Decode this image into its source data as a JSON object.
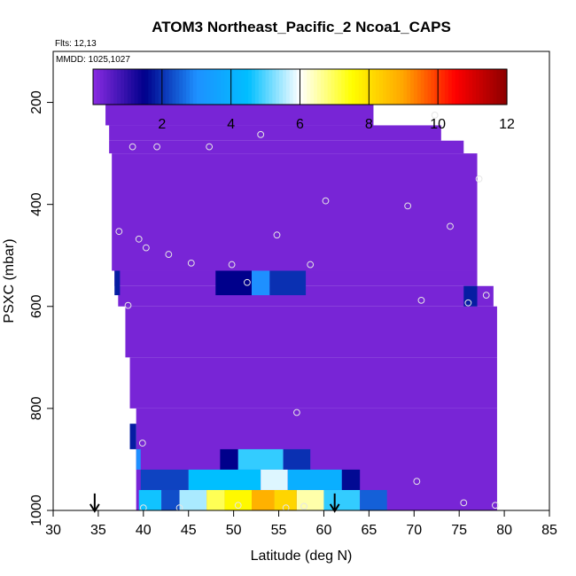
{
  "chart_data": {
    "type": "heatmap",
    "title": "ATOM3 Northeast_Pacific_2 Ncoa1_CAPS",
    "flights_label": "Flts: 12,13",
    "mmdd_label": "MMDD: 1025,1027",
    "xlabel": "Latitude (deg N)",
    "ylabel": "PSXC (mbar)",
    "xlim": [
      30,
      85
    ],
    "ylim": [
      1000,
      100
    ],
    "x_ticks": [
      30,
      35,
      40,
      45,
      50,
      55,
      60,
      65,
      70,
      75,
      80,
      85
    ],
    "y_ticks": [
      200,
      400,
      600,
      800,
      1000
    ],
    "colorbar": {
      "range": [
        0,
        12
      ],
      "ticks": [
        2,
        4,
        6,
        8,
        10,
        12
      ],
      "colors": [
        "#8a2be2",
        "#00008b",
        "#1e90ff",
        "#00bfff",
        "#ffffff",
        "#ffff00",
        "#ffa500",
        "#ff0000",
        "#8b0000"
      ]
    },
    "base_value": 0.2,
    "domain": [
      {
        "lat": [
          35.8,
          65.5
        ],
        "p": [
          165,
          245
        ]
      },
      {
        "lat": [
          36.2,
          73.0
        ],
        "p": [
          245,
          275
        ]
      },
      {
        "lat": [
          36.2,
          75.5
        ],
        "p": [
          275,
          300
        ]
      },
      {
        "lat": [
          36.5,
          77.0
        ],
        "p": [
          300,
          530
        ]
      },
      {
        "lat": [
          36.8,
          77.0
        ],
        "p": [
          530,
          560
        ]
      },
      {
        "lat": [
          37.2,
          78.8
        ],
        "p": [
          560,
          600
        ]
      },
      {
        "lat": [
          38.0,
          79.2
        ],
        "p": [
          600,
          700
        ]
      },
      {
        "lat": [
          38.5,
          79.2
        ],
        "p": [
          700,
          800
        ]
      },
      {
        "lat": [
          39.2,
          79.2
        ],
        "p": [
          800,
          1010
        ]
      }
    ],
    "features": [
      {
        "lat": [
          48,
          52
        ],
        "p": [
          530,
          578
        ],
        "v": 1.5
      },
      {
        "lat": [
          52,
          54
        ],
        "p": [
          530,
          578
        ],
        "v": 3.0
      },
      {
        "lat": [
          54,
          58
        ],
        "p": [
          530,
          578
        ],
        "v": 2.0
      },
      {
        "lat": [
          36.8,
          37.4
        ],
        "p": [
          530,
          578
        ],
        "v": 1.8
      },
      {
        "lat": [
          75.5,
          77
        ],
        "p": [
          560,
          600
        ],
        "v": 1.8
      },
      {
        "lat": [
          38.5,
          39.2
        ],
        "p": [
          830,
          880
        ],
        "v": 1.8
      },
      {
        "lat": [
          39.2,
          39.7
        ],
        "p": [
          880,
          920
        ],
        "v": 3.0
      },
      {
        "lat": [
          48.5,
          50.5
        ],
        "p": [
          880,
          920
        ],
        "v": 1.5
      },
      {
        "lat": [
          50.5,
          55.5
        ],
        "p": [
          880,
          920
        ],
        "v": 4.8
      },
      {
        "lat": [
          55.5,
          58.5
        ],
        "p": [
          880,
          920
        ],
        "v": 2.0
      },
      {
        "lat": [
          39.7,
          45
        ],
        "p": [
          920,
          960
        ],
        "v": 2.2
      },
      {
        "lat": [
          45,
          53
        ],
        "p": [
          920,
          960
        ],
        "v": 4.5
      },
      {
        "lat": [
          53,
          56
        ],
        "p": [
          920,
          960
        ],
        "v": 5.8
      },
      {
        "lat": [
          56,
          62
        ],
        "p": [
          920,
          960
        ],
        "v": 4.0
      },
      {
        "lat": [
          62,
          64
        ],
        "p": [
          920,
          960
        ],
        "v": 1.6
      },
      {
        "lat": [
          39.5,
          42
        ],
        "p": [
          960,
          1000
        ],
        "v": 4.6
      },
      {
        "lat": [
          42,
          44
        ],
        "p": [
          960,
          1000
        ],
        "v": 2.3
      },
      {
        "lat": [
          44,
          47
        ],
        "p": [
          960,
          1000
        ],
        "v": 5.5
      },
      {
        "lat": [
          47,
          49
        ],
        "p": [
          960,
          1000
        ],
        "v": 7.0
      },
      {
        "lat": [
          49,
          52
        ],
        "p": [
          960,
          1000
        ],
        "v": 7.6
      },
      {
        "lat": [
          52,
          54.5
        ],
        "p": [
          960,
          1000
        ],
        "v": 8.8
      },
      {
        "lat": [
          54.5,
          57
        ],
        "p": [
          960,
          1000
        ],
        "v": 8.2
      },
      {
        "lat": [
          57,
          60
        ],
        "p": [
          960,
          1000
        ],
        "v": 6.5
      },
      {
        "lat": [
          60,
          64
        ],
        "p": [
          960,
          1000
        ],
        "v": 4.8
      },
      {
        "lat": [
          64,
          67
        ],
        "p": [
          960,
          1000
        ],
        "v": 2.5
      },
      {
        "lat": [
          39.5,
          42
        ],
        "p": [
          1000,
          1010
        ],
        "v": 3.5
      },
      {
        "lat": [
          42,
          48
        ],
        "p": [
          1000,
          1010
        ],
        "v": 1.4
      },
      {
        "lat": [
          48,
          51
        ],
        "p": [
          1000,
          1010
        ],
        "v": 2.5
      },
      {
        "lat": [
          51,
          53
        ],
        "p": [
          1000,
          1010
        ],
        "v": 4.5
      },
      {
        "lat": [
          53,
          54.5
        ],
        "p": [
          1000,
          1010
        ],
        "v": 7.0
      },
      {
        "lat": [
          54.5,
          56.5
        ],
        "p": [
          1000,
          1010
        ],
        "v": 10.5
      },
      {
        "lat": [
          56.5,
          58.5
        ],
        "p": [
          1000,
          1010
        ],
        "v": 8.5
      },
      {
        "lat": [
          58.5,
          61
        ],
        "p": [
          1000,
          1010
        ],
        "v": 7.5
      },
      {
        "lat": [
          61,
          64
        ],
        "p": [
          1000,
          1010
        ],
        "v": 5.0
      },
      {
        "lat": [
          64,
          70
        ],
        "p": [
          1000,
          1010
        ],
        "v": 2.2
      },
      {
        "lat": [
          70,
          79.2
        ],
        "p": [
          1000,
          1010
        ],
        "v": 0.8
      }
    ],
    "points": [
      {
        "lat": 36.2,
        "p": 195
      },
      {
        "lat": 65.5,
        "p": 183
      },
      {
        "lat": 72.3,
        "p": 225
      },
      {
        "lat": 38.8,
        "p": 287
      },
      {
        "lat": 41.5,
        "p": 287
      },
      {
        "lat": 47.3,
        "p": 287
      },
      {
        "lat": 53.0,
        "p": 263
      },
      {
        "lat": 77.2,
        "p": 350
      },
      {
        "lat": 60.2,
        "p": 393
      },
      {
        "lat": 69.3,
        "p": 403
      },
      {
        "lat": 74.0,
        "p": 443
      },
      {
        "lat": 37.3,
        "p": 453
      },
      {
        "lat": 39.5,
        "p": 468
      },
      {
        "lat": 40.3,
        "p": 485
      },
      {
        "lat": 42.8,
        "p": 498
      },
      {
        "lat": 45.3,
        "p": 515
      },
      {
        "lat": 49.8,
        "p": 518
      },
      {
        "lat": 54.8,
        "p": 460
      },
      {
        "lat": 58.5,
        "p": 518
      },
      {
        "lat": 51.5,
        "p": 553
      },
      {
        "lat": 38.3,
        "p": 598
      },
      {
        "lat": 70.8,
        "p": 588
      },
      {
        "lat": 76.0,
        "p": 593
      },
      {
        "lat": 78.0,
        "p": 578
      },
      {
        "lat": 57.0,
        "p": 808
      },
      {
        "lat": 39.9,
        "p": 868
      },
      {
        "lat": 70.3,
        "p": 943
      },
      {
        "lat": 40.0,
        "p": 995
      },
      {
        "lat": 44.0,
        "p": 995
      },
      {
        "lat": 50.5,
        "p": 990
      },
      {
        "lat": 55.8,
        "p": 995
      },
      {
        "lat": 57.8,
        "p": 992
      },
      {
        "lat": 75.5,
        "p": 985
      },
      {
        "lat": 79.0,
        "p": 990
      }
    ],
    "arrows": [
      {
        "lat": 34.6,
        "p": 1005
      },
      {
        "lat": 61.2,
        "p": 1005
      }
    ]
  }
}
